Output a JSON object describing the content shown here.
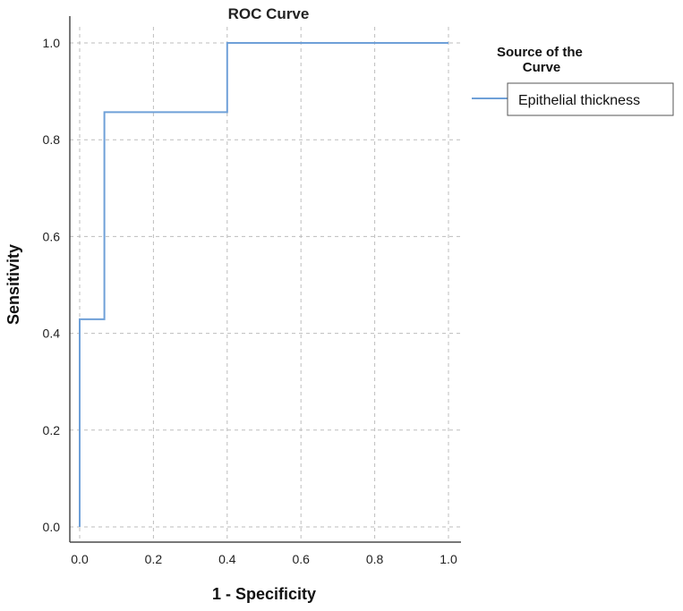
{
  "chart_data": {
    "type": "line",
    "title": "ROC Curve",
    "xlabel": "1 - Specificity",
    "ylabel": "Sensitivity",
    "xlim": [
      0,
      1
    ],
    "ylim": [
      0,
      1
    ],
    "xticks": [
      "0.0",
      "0.2",
      "0.4",
      "0.6",
      "0.8",
      "1.0"
    ],
    "yticks": [
      "0.0",
      "0.2",
      "0.4",
      "0.6",
      "0.8",
      "1.0"
    ],
    "grid": true,
    "legend": {
      "title": "Source of the Curve",
      "placement": "right",
      "entries": [
        "Epithelial thickness"
      ]
    },
    "series": [
      {
        "name": "Epithelial thickness",
        "color": "#6fa0d8",
        "step": true,
        "x": [
          0,
          0,
          0.067,
          0.067,
          0.4,
          0.4,
          1.0
        ],
        "y": [
          0,
          0.429,
          0.429,
          0.857,
          0.857,
          1.0,
          1.0
        ]
      }
    ]
  }
}
